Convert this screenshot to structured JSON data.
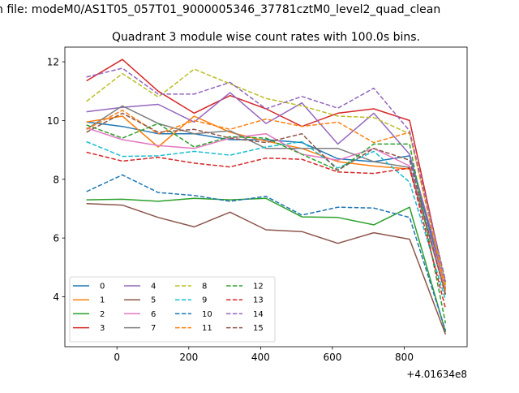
{
  "suptitle": "n file: modeM0/AS1T05_057T01_9000005346_37781cztM0_level2_quad_clean",
  "chart_data": {
    "type": "line",
    "title": "Quadrant 3 module wise count rates with 100.0s bins.",
    "xlabel": "",
    "ylabel": "",
    "x_offset_label": "+4.01634e8",
    "x": [
      -85,
      15,
      115,
      215,
      315,
      415,
      515,
      615,
      715,
      815,
      915
    ],
    "xlim": [
      -145,
      975
    ],
    "ylim": [
      2.3,
      12.5
    ],
    "xticks": [
      0,
      200,
      400,
      600,
      800
    ],
    "xtick_labels": [
      "0",
      "200",
      "400",
      "600",
      "800"
    ],
    "yticks": [
      4,
      6,
      8,
      10,
      12
    ],
    "ytick_labels": [
      "4",
      "6",
      "8",
      "10",
      "12"
    ],
    "grid": false,
    "legend_position": "lower-left",
    "legend_columns": 4,
    "series": [
      {
        "name": "0",
        "color": "#1f77b4",
        "dash": "solid",
        "values": [
          9.95,
          9.8,
          9.55,
          9.55,
          9.35,
          9.35,
          9.25,
          8.7,
          8.6,
          8.8,
          4.3
        ]
      },
      {
        "name": "1",
        "color": "#ff7f0e",
        "dash": "solid",
        "values": [
          9.95,
          10.15,
          9.1,
          10.15,
          9.6,
          9.3,
          9.05,
          8.6,
          8.45,
          8.35,
          4.2
        ]
      },
      {
        "name": "2",
        "color": "#2ca02c",
        "dash": "solid",
        "values": [
          7.3,
          7.32,
          7.25,
          7.35,
          7.3,
          7.35,
          6.72,
          6.7,
          6.45,
          7.05,
          2.8
        ]
      },
      {
        "name": "3",
        "color": "#d62728",
        "dash": "solid",
        "values": [
          11.35,
          12.08,
          11.0,
          10.25,
          10.85,
          10.4,
          9.8,
          10.25,
          10.4,
          10.0,
          4.4
        ]
      },
      {
        "name": "4",
        "color": "#9467bd",
        "dash": "solid",
        "values": [
          10.3,
          10.45,
          10.55,
          9.95,
          10.95,
          9.9,
          10.6,
          9.2,
          10.25,
          8.85,
          4.5
        ]
      },
      {
        "name": "5",
        "color": "#8c564b",
        "dash": "solid",
        "values": [
          7.17,
          7.12,
          6.7,
          6.38,
          6.88,
          6.28,
          6.22,
          5.82,
          6.18,
          5.96,
          2.72
        ]
      },
      {
        "name": "6",
        "color": "#e377c2",
        "dash": "solid",
        "values": [
          9.75,
          9.35,
          9.15,
          9.05,
          9.4,
          9.55,
          8.85,
          8.65,
          9.05,
          8.45,
          4.3
        ]
      },
      {
        "name": "7",
        "color": "#7f7f7f",
        "dash": "solid",
        "values": [
          9.7,
          10.5,
          9.9,
          9.55,
          9.65,
          9.05,
          9.05,
          9.05,
          8.6,
          8.4,
          4.1
        ]
      },
      {
        "name": "8",
        "color": "#bcbd22",
        "dash": "dashed",
        "values": [
          10.65,
          11.6,
          10.8,
          11.75,
          11.25,
          10.75,
          10.5,
          10.15,
          10.1,
          9.55,
          4.4
        ]
      },
      {
        "name": "9",
        "color": "#17becf",
        "dash": "dashed",
        "values": [
          9.28,
          8.78,
          8.8,
          8.95,
          8.82,
          9.1,
          9.28,
          8.38,
          8.95,
          7.9,
          3.9
        ]
      },
      {
        "name": "10",
        "color": "#1f77b4",
        "dash": "dashed",
        "values": [
          7.58,
          8.15,
          7.55,
          7.45,
          7.25,
          7.42,
          6.78,
          7.05,
          7.02,
          6.7,
          2.85
        ]
      },
      {
        "name": "11",
        "color": "#ff7f0e",
        "dash": "dashed",
        "values": [
          9.7,
          10.35,
          9.55,
          10.0,
          9.7,
          10.05,
          9.8,
          9.95,
          9.25,
          9.6,
          4.25
        ]
      },
      {
        "name": "12",
        "color": "#2ca02c",
        "dash": "dashed",
        "values": [
          9.85,
          9.4,
          9.9,
          9.1,
          9.45,
          9.4,
          8.85,
          8.3,
          9.2,
          9.2,
          3.1
        ]
      },
      {
        "name": "13",
        "color": "#d62728",
        "dash": "dashed",
        "values": [
          8.92,
          8.62,
          8.75,
          8.55,
          8.42,
          8.72,
          8.68,
          8.25,
          8.2,
          8.38,
          3.6
        ]
      },
      {
        "name": "14",
        "color": "#9467bd",
        "dash": "dashed",
        "values": [
          11.48,
          11.78,
          10.9,
          10.9,
          11.3,
          10.4,
          10.82,
          10.42,
          11.1,
          9.65,
          4.55
        ]
      },
      {
        "name": "15",
        "color": "#8c564b",
        "dash": "dashed",
        "values": [
          9.6,
          10.25,
          9.6,
          9.7,
          9.4,
          9.25,
          9.55,
          8.3,
          9.05,
          8.65,
          4.05
        ]
      }
    ]
  }
}
